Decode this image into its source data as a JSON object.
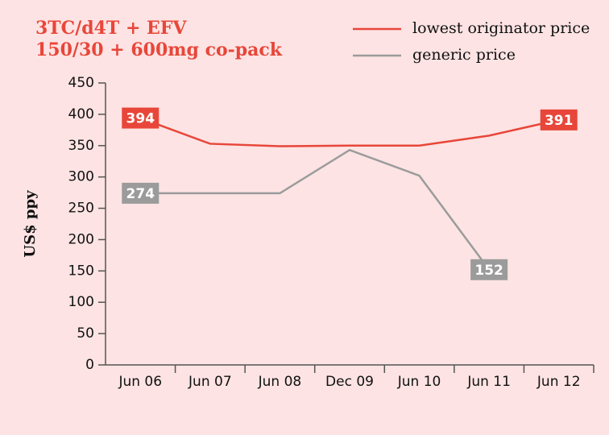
{
  "chart_data": {
    "type": "line",
    "title": [
      "3TC/d4T + EFV",
      "150/30 + 600mg co-pack"
    ],
    "y_label": "US$ ppy",
    "categories": [
      "Jun 06",
      "Jun 07",
      "Jun 08",
      "Dec 09",
      "Jun 10",
      "Jun 11",
      "Jun 12"
    ],
    "series": [
      {
        "name": "lowest originator price",
        "color": "#e8463a",
        "values": [
          394,
          353,
          349,
          350,
          350,
          366,
          391
        ]
      },
      {
        "name": "generic price",
        "color": "#9b9b9b",
        "values": [
          274,
          274,
          274,
          343,
          302,
          152,
          null
        ]
      }
    ],
    "ylim": [
      0,
      450
    ],
    "yticks": [
      0,
      50,
      100,
      150,
      200,
      250,
      300,
      350,
      400,
      450
    ],
    "legend": "top-right"
  }
}
